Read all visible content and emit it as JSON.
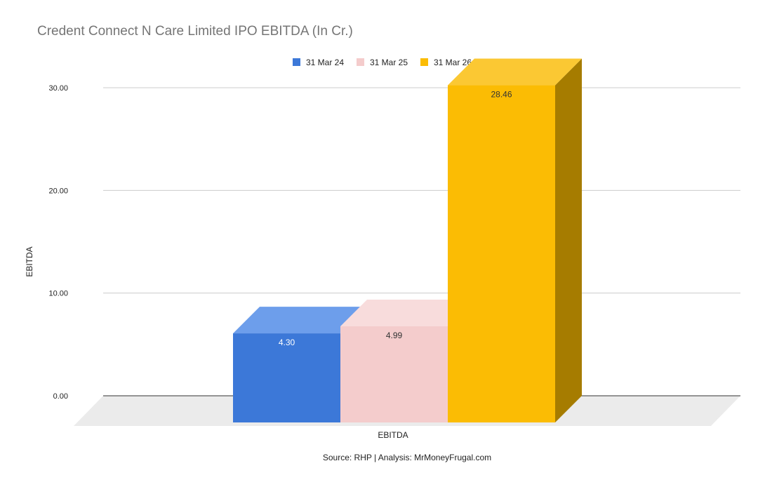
{
  "chart_data": {
    "type": "bar",
    "title": "Credent Connect N Care Limited IPO EBITDA (In Cr.)",
    "xlabel": "EBITDA",
    "ylabel": "EBITDA",
    "categories": [
      "EBITDA"
    ],
    "series": [
      {
        "name": "31 Mar 24",
        "values": [
          4.3
        ],
        "label": "4.30",
        "color": "#3c78d8",
        "top_color": "#6d9eeb",
        "side_color": "#2a5aa8",
        "label_color": "#ffffff"
      },
      {
        "name": "31 Mar 25",
        "values": [
          4.99
        ],
        "label": "4.99",
        "color": "#f4cccc",
        "top_color": "#f8dcdc",
        "side_color": "#b89a9a",
        "label_color": "#333333"
      },
      {
        "name": "31 Mar 26",
        "values": [
          28.46
        ],
        "label": "28.46",
        "color": "#fbbc04",
        "top_color": "#fbc833",
        "side_color": "#a67c00",
        "label_color": "#333333"
      }
    ],
    "ylim": [
      0,
      30
    ],
    "yticks": [
      "0.00",
      "10.00",
      "20.00",
      "30.00"
    ],
    "grid": true,
    "legend_position": "top-center",
    "style": "3d-bar",
    "source_note": "Source: RHP | Analysis: MrMoneyFrugal.com"
  }
}
